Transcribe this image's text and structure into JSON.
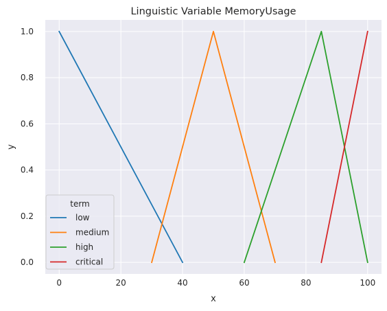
{
  "chart_data": {
    "type": "line",
    "title": "Linguistic Variable MemoryUsage",
    "xlabel": "x",
    "ylabel": "y",
    "xlim": [
      -4.5,
      104.5
    ],
    "ylim": [
      -0.05,
      1.05
    ],
    "xticks": [
      0,
      20,
      40,
      60,
      80,
      100
    ],
    "yticks": [
      0.0,
      0.2,
      0.4,
      0.6,
      0.8,
      1.0
    ],
    "grid": true,
    "legend": {
      "title": "term",
      "placement": "lower-left"
    },
    "series": [
      {
        "name": "low",
        "color": "#1f77b4",
        "x": [
          0,
          40
        ],
        "y": [
          1.0,
          0.0
        ]
      },
      {
        "name": "medium",
        "color": "#ff7f0e",
        "x": [
          30,
          50,
          70
        ],
        "y": [
          0.0,
          1.0,
          0.0
        ]
      },
      {
        "name": "high",
        "color": "#2ca02c",
        "x": [
          60,
          85,
          100
        ],
        "y": [
          0.0,
          1.0,
          0.0
        ]
      },
      {
        "name": "critical",
        "color": "#d62728",
        "x": [
          85,
          100
        ],
        "y": [
          0.0,
          1.0
        ]
      }
    ]
  }
}
